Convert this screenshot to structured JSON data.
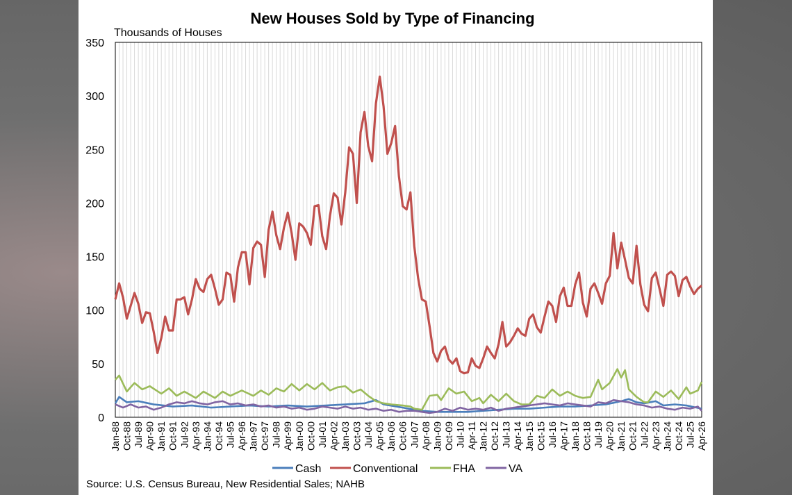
{
  "chart_data": {
    "type": "line",
    "title": "New Houses Sold by Type of Financing",
    "ylabel": "Thousands of Houses",
    "source": "Source: U.S. Census Bureau, New Residential Sales; NAHB",
    "ylim": [
      0,
      350
    ],
    "yticks": [
      0,
      50,
      100,
      150,
      200,
      250,
      300,
      350
    ],
    "grid": "vertical",
    "legend_position": "bottom",
    "x_start": "1988-01",
    "x_end": "2026-04",
    "x_step_quarters": 1,
    "xtick_labels": [
      "Jan-88",
      "Oct-88",
      "Jul-89",
      "Apr-90",
      "Jan-91",
      "Oct-91",
      "Jul-92",
      "Apr-93",
      "Jan-94",
      "Oct-94",
      "Jul-95",
      "Apr-96",
      "Jan-97",
      "Oct-97",
      "Jul-98",
      "Apr-99",
      "Jan-00",
      "Oct-00",
      "Jul-01",
      "Apr-02",
      "Jan-03",
      "Oct-03",
      "Jul-04",
      "Apr-05",
      "Jan-06",
      "Oct-06",
      "Jul-07",
      "Apr-08",
      "Jan-09",
      "Oct-09",
      "Jul-10",
      "Apr-11",
      "Jan-12",
      "Oct-12",
      "Jul-13",
      "Apr-14",
      "Jan-15",
      "Oct-15",
      "Jul-16",
      "Apr-17",
      "Jan-18",
      "Oct-18",
      "Jul-19",
      "Apr-20",
      "Jan-21",
      "Oct-21",
      "Jul-22",
      "Apr-23",
      "Jan-24",
      "Oct-24",
      "Jul-25",
      "Apr-26"
    ],
    "series": [
      {
        "name": "Cash",
        "color": "#4a7ebb",
        "anchors": [
          [
            0,
            13
          ],
          [
            1,
            19
          ],
          [
            3,
            14
          ],
          [
            6,
            15
          ],
          [
            10,
            12
          ],
          [
            15,
            10
          ],
          [
            20,
            11
          ],
          [
            25,
            9
          ],
          [
            30,
            10
          ],
          [
            35,
            11
          ],
          [
            40,
            10
          ],
          [
            45,
            11
          ],
          [
            50,
            10
          ],
          [
            55,
            11
          ],
          [
            60,
            12
          ],
          [
            65,
            13
          ],
          [
            68,
            16
          ],
          [
            70,
            12
          ],
          [
            75,
            9
          ],
          [
            78,
            7
          ],
          [
            80,
            6
          ],
          [
            84,
            5
          ],
          [
            88,
            5
          ],
          [
            92,
            5
          ],
          [
            96,
            6
          ],
          [
            100,
            7
          ],
          [
            104,
            8
          ],
          [
            108,
            8
          ],
          [
            112,
            9
          ],
          [
            116,
            10
          ],
          [
            120,
            10
          ],
          [
            124,
            11
          ],
          [
            128,
            12
          ],
          [
            132,
            15
          ],
          [
            134,
            17
          ],
          [
            136,
            14
          ],
          [
            138,
            13
          ],
          [
            141,
            15
          ],
          [
            143,
            11
          ],
          [
            146,
            12
          ],
          [
            149,
            11
          ],
          [
            153,
            8
          ]
        ]
      },
      {
        "name": "Conventional",
        "color": "#c0504d",
        "values": [
          110,
          125,
          112,
          92,
          104,
          116,
          106,
          88,
          98,
          97,
          80,
          60,
          74,
          94,
          81,
          81,
          110,
          110,
          112,
          96,
          110,
          129,
          120,
          117,
          129,
          133,
          120,
          105,
          110,
          135,
          133,
          108,
          140,
          154,
          154,
          124,
          158,
          164,
          161,
          131,
          175,
          192,
          170,
          157,
          177,
          191,
          172,
          147,
          181,
          178,
          172,
          161,
          197,
          198,
          169,
          157,
          188,
          209,
          205,
          180,
          210,
          252,
          246,
          200,
          266,
          285,
          253,
          239,
          293,
          318,
          290,
          246,
          256,
          272,
          225,
          197,
          194,
          210,
          160,
          130,
          110,
          108,
          85,
          60,
          52,
          62,
          66,
          54,
          50,
          55,
          43,
          41,
          42,
          55,
          48,
          46,
          55,
          66,
          60,
          55,
          68,
          89,
          66,
          70,
          76,
          83,
          78,
          76,
          92,
          96,
          84,
          79,
          94,
          108,
          104,
          89,
          113,
          121,
          104,
          104,
          124,
          135,
          107,
          94,
          120,
          125,
          116,
          106,
          125,
          132,
          172,
          139,
          163,
          147,
          130,
          125,
          160,
          124,
          105,
          99,
          130,
          135,
          120,
          104,
          133,
          136,
          132,
          113,
          128,
          131,
          122,
          115,
          120,
          123
        ]
      },
      {
        "name": "FHA",
        "color": "#9bbb59",
        "anchors": [
          [
            0,
            35
          ],
          [
            1,
            39
          ],
          [
            3,
            24
          ],
          [
            5,
            32
          ],
          [
            7,
            26
          ],
          [
            9,
            29
          ],
          [
            12,
            22
          ],
          [
            14,
            27
          ],
          [
            16,
            20
          ],
          [
            18,
            24
          ],
          [
            21,
            18
          ],
          [
            23,
            24
          ],
          [
            26,
            18
          ],
          [
            28,
            24
          ],
          [
            30,
            20
          ],
          [
            33,
            25
          ],
          [
            36,
            20
          ],
          [
            38,
            25
          ],
          [
            40,
            21
          ],
          [
            42,
            27
          ],
          [
            44,
            24
          ],
          [
            46,
            31
          ],
          [
            48,
            25
          ],
          [
            50,
            31
          ],
          [
            52,
            26
          ],
          [
            54,
            32
          ],
          [
            56,
            25
          ],
          [
            58,
            28
          ],
          [
            60,
            29
          ],
          [
            62,
            23
          ],
          [
            64,
            26
          ],
          [
            66,
            20
          ],
          [
            68,
            15
          ],
          [
            70,
            13
          ],
          [
            72,
            12
          ],
          [
            75,
            11
          ],
          [
            77,
            10
          ],
          [
            78,
            8
          ],
          [
            80,
            7
          ],
          [
            82,
            20
          ],
          [
            84,
            21
          ],
          [
            85,
            16
          ],
          [
            87,
            27
          ],
          [
            89,
            22
          ],
          [
            91,
            24
          ],
          [
            93,
            15
          ],
          [
            95,
            18
          ],
          [
            96,
            13
          ],
          [
            98,
            21
          ],
          [
            100,
            15
          ],
          [
            102,
            22
          ],
          [
            104,
            15
          ],
          [
            106,
            12
          ],
          [
            108,
            12
          ],
          [
            110,
            20
          ],
          [
            112,
            18
          ],
          [
            114,
            26
          ],
          [
            116,
            20
          ],
          [
            118,
            24
          ],
          [
            120,
            20
          ],
          [
            122,
            18
          ],
          [
            124,
            19
          ],
          [
            126,
            35
          ],
          [
            127,
            26
          ],
          [
            129,
            32
          ],
          [
            131,
            45
          ],
          [
            132,
            37
          ],
          [
            133,
            44
          ],
          [
            134,
            26
          ],
          [
            136,
            19
          ],
          [
            138,
            14
          ],
          [
            139,
            14
          ],
          [
            141,
            24
          ],
          [
            143,
            19
          ],
          [
            145,
            25
          ],
          [
            147,
            17
          ],
          [
            149,
            28
          ],
          [
            150,
            22
          ],
          [
            152,
            25
          ],
          [
            153,
            33
          ]
        ]
      },
      {
        "name": "VA",
        "color": "#8064a2",
        "anchors": [
          [
            0,
            12
          ],
          [
            2,
            9
          ],
          [
            4,
            12
          ],
          [
            6,
            9
          ],
          [
            8,
            10
          ],
          [
            10,
            7
          ],
          [
            12,
            9
          ],
          [
            14,
            12
          ],
          [
            16,
            14
          ],
          [
            18,
            13
          ],
          [
            20,
            15
          ],
          [
            22,
            13
          ],
          [
            24,
            12
          ],
          [
            26,
            14
          ],
          [
            28,
            15
          ],
          [
            30,
            12
          ],
          [
            32,
            13
          ],
          [
            34,
            11
          ],
          [
            36,
            12
          ],
          [
            38,
            10
          ],
          [
            40,
            11
          ],
          [
            42,
            9
          ],
          [
            44,
            10
          ],
          [
            46,
            8
          ],
          [
            48,
            9
          ],
          [
            50,
            7
          ],
          [
            52,
            8
          ],
          [
            54,
            10
          ],
          [
            56,
            9
          ],
          [
            58,
            8
          ],
          [
            60,
            10
          ],
          [
            62,
            8
          ],
          [
            64,
            9
          ],
          [
            66,
            7
          ],
          [
            68,
            8
          ],
          [
            70,
            6
          ],
          [
            72,
            7
          ],
          [
            74,
            5
          ],
          [
            76,
            6
          ],
          [
            78,
            6
          ],
          [
            80,
            5
          ],
          [
            82,
            4
          ],
          [
            84,
            5
          ],
          [
            86,
            8
          ],
          [
            88,
            6
          ],
          [
            90,
            9
          ],
          [
            92,
            7
          ],
          [
            94,
            8
          ],
          [
            96,
            7
          ],
          [
            98,
            9
          ],
          [
            100,
            6
          ],
          [
            102,
            8
          ],
          [
            104,
            9
          ],
          [
            106,
            10
          ],
          [
            108,
            11
          ],
          [
            110,
            12
          ],
          [
            112,
            13
          ],
          [
            114,
            12
          ],
          [
            116,
            11
          ],
          [
            118,
            13
          ],
          [
            120,
            12
          ],
          [
            122,
            11
          ],
          [
            124,
            10
          ],
          [
            126,
            14
          ],
          [
            128,
            13
          ],
          [
            130,
            16
          ],
          [
            132,
            15
          ],
          [
            134,
            14
          ],
          [
            136,
            12
          ],
          [
            138,
            11
          ],
          [
            140,
            9
          ],
          [
            142,
            10
          ],
          [
            144,
            8
          ],
          [
            146,
            7
          ],
          [
            148,
            9
          ],
          [
            150,
            8
          ],
          [
            152,
            10
          ],
          [
            153,
            6
          ]
        ]
      }
    ]
  }
}
